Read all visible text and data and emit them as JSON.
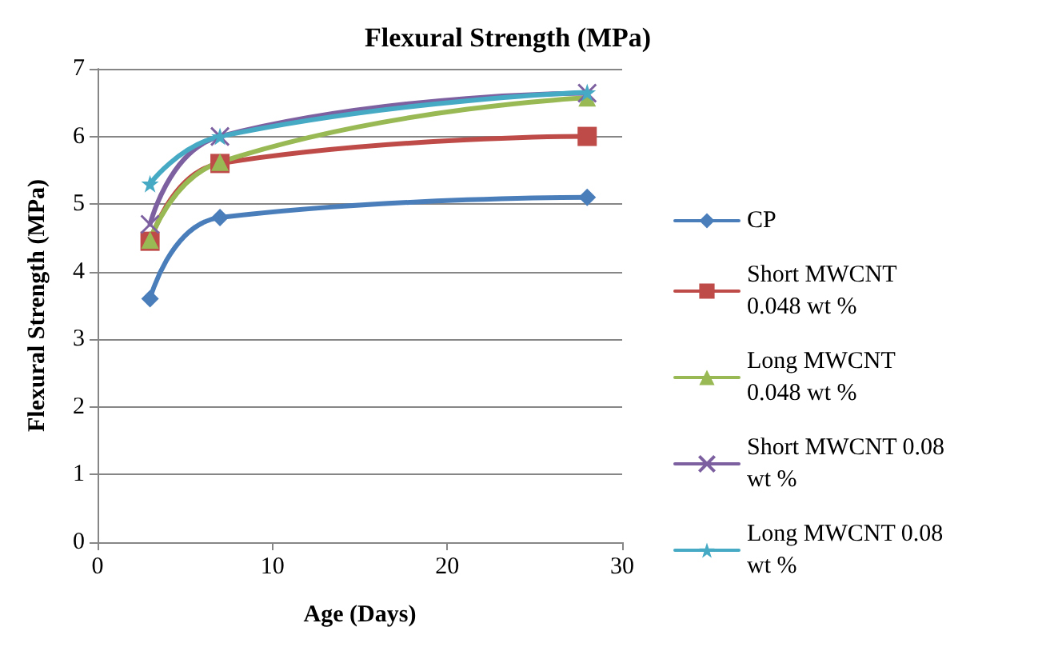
{
  "chart_data": {
    "type": "line",
    "title": "Flexural Strength (MPa)",
    "xlabel": "Age (Days)",
    "ylabel": "Flexural Strength (MPa)",
    "x": [
      3,
      7,
      28
    ],
    "xlim": [
      0,
      30
    ],
    "xticks": [
      0,
      10,
      20,
      30
    ],
    "ylim": [
      0,
      7
    ],
    "yticks": [
      0,
      1,
      2,
      3,
      4,
      5,
      6,
      7
    ],
    "grid": "y",
    "legend": "right",
    "line_style": "solid",
    "series": [
      {
        "name": "CP",
        "color": "#4a7ebb",
        "marker": "diamond",
        "values": [
          3.6,
          4.8,
          5.1
        ]
      },
      {
        "name": "Short MWCNT 0.048 wt %",
        "color": "#be4b48",
        "marker": "square",
        "values": [
          4.45,
          5.6,
          6.0
        ]
      },
      {
        "name": "Long MWCNT 0.048 wt %",
        "color": "#98b954",
        "marker": "triangle",
        "values": [
          4.47,
          5.62,
          6.57
        ]
      },
      {
        "name": "Short MWCNT 0.08 wt %",
        "color": "#7d60a0",
        "marker": "cross",
        "values": [
          4.7,
          6.0,
          6.64
        ]
      },
      {
        "name": "Long MWCNT 0.08 wt %",
        "color": "#46aac5",
        "marker": "star",
        "values": [
          5.3,
          6.0,
          6.65
        ]
      }
    ]
  }
}
